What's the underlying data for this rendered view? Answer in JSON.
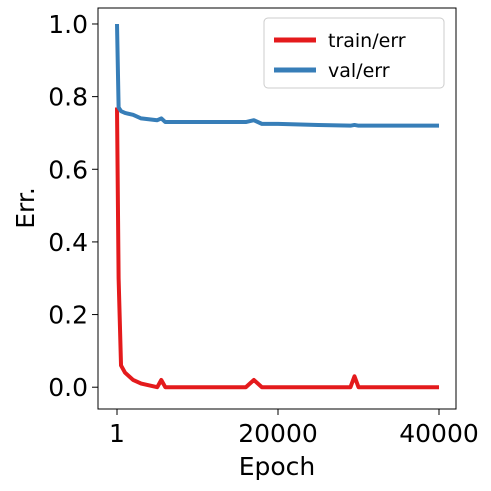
{
  "chart_data": {
    "type": "line",
    "xlabel": "Epoch",
    "ylabel": "Err.",
    "x": [
      1,
      200,
      500,
      1000,
      2000,
      3000,
      5000,
      5500,
      6000,
      8000,
      10000,
      13000,
      16000,
      17000,
      18000,
      20000,
      25000,
      29000,
      29500,
      30000,
      35000,
      40000
    ],
    "series": [
      {
        "name": "train/err",
        "color": "#e41a1c",
        "values": [
          0.77,
          0.3,
          0.06,
          0.04,
          0.02,
          0.01,
          0.0,
          0.02,
          0.0,
          0.0,
          0.0,
          0.0,
          0.0,
          0.02,
          0.0,
          0.0,
          0.0,
          0.0,
          0.03,
          0.0,
          0.0,
          0.0
        ]
      },
      {
        "name": "val/err",
        "color": "#377eb8",
        "values": [
          1.0,
          0.77,
          0.76,
          0.755,
          0.75,
          0.74,
          0.735,
          0.74,
          0.73,
          0.73,
          0.73,
          0.73,
          0.73,
          0.735,
          0.725,
          0.725,
          0.722,
          0.72,
          0.722,
          0.72,
          0.72,
          0.72
        ]
      }
    ],
    "xlim": [
      -2360,
      42110
    ],
    "ylim": [
      -0.06,
      1.044
    ],
    "xticks": [
      1,
      20000,
      40000
    ],
    "yticks": [
      {
        "value": 0,
        "label": "0.0"
      },
      {
        "value": 0.2,
        "label": "0.2"
      },
      {
        "value": 0.4,
        "label": "0.4"
      },
      {
        "value": 0.6,
        "label": "0.6"
      },
      {
        "value": 0.8,
        "label": "0.8"
      },
      {
        "value": 1.0,
        "label": "1.0"
      }
    ],
    "legend": "upper right",
    "grid": false
  }
}
